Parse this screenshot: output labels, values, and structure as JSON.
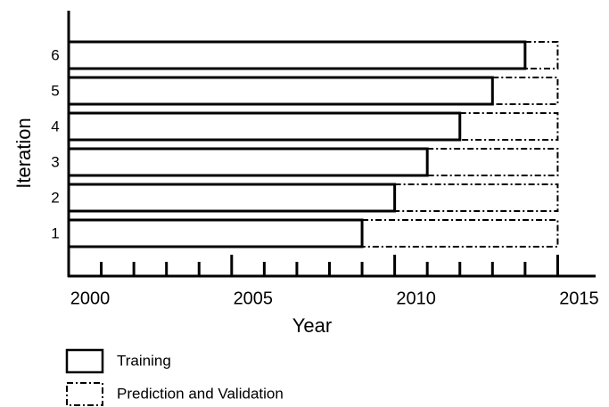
{
  "chart_data": {
    "type": "timeline-bar",
    "x_label": "Year",
    "y_label": "Iteration",
    "categories": [
      "1",
      "2",
      "3",
      "4",
      "5",
      "6"
    ],
    "series": [
      {
        "name": "Training",
        "style": "solid",
        "starts": [
          2000,
          2000,
          2000,
          2000,
          2000,
          2000
        ],
        "values": [
          2009,
          2010,
          2011,
          2012,
          2013,
          2014
        ]
      },
      {
        "name": "Prediction and Validation",
        "style": "dashdot",
        "values": [
          2015,
          2015,
          2015,
          2015,
          2015,
          2015
        ]
      }
    ],
    "xlim": [
      2000,
      2016
    ],
    "xticks": [
      2000,
      2005,
      2010,
      2015
    ],
    "minor_xticks": [
      2001,
      2002,
      2003,
      2004,
      2006,
      2007,
      2008,
      2009,
      2011,
      2012,
      2013,
      2014
    ]
  }
}
